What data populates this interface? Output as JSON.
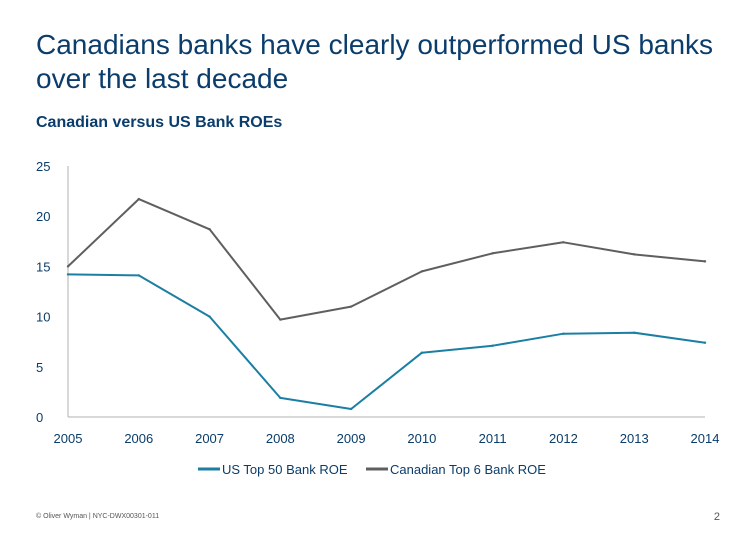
{
  "slide": {
    "title": "Canadians banks have clearly outperformed US banks over the last decade",
    "subtitle": "Canadian versus US Bank ROEs",
    "footer": "© Oliver Wyman | NYC-DWX00301-011",
    "page_number": "2"
  },
  "chart_data": {
    "type": "line",
    "title": "",
    "xlabel": "",
    "ylabel": "",
    "x": [
      "2005",
      "2006",
      "2007",
      "2008",
      "2009",
      "2010",
      "2011",
      "2012",
      "2013",
      "2014"
    ],
    "ylim": [
      0,
      25
    ],
    "yticks": [
      0,
      5,
      10,
      15,
      20,
      25
    ],
    "grid": false,
    "legend_position": "bottom",
    "series": [
      {
        "name": "US Top 50 Bank ROE",
        "color": "#1b7fa3",
        "values": [
          14.2,
          14.1,
          10.0,
          1.9,
          0.8,
          6.4,
          7.1,
          8.3,
          8.4,
          7.4
        ]
      },
      {
        "name": "Canadian Top 6 Bank ROE",
        "color": "#5f5f5f",
        "values": [
          15.0,
          21.7,
          18.7,
          9.7,
          11.0,
          14.5,
          16.3,
          17.4,
          16.2,
          15.5
        ]
      }
    ]
  }
}
